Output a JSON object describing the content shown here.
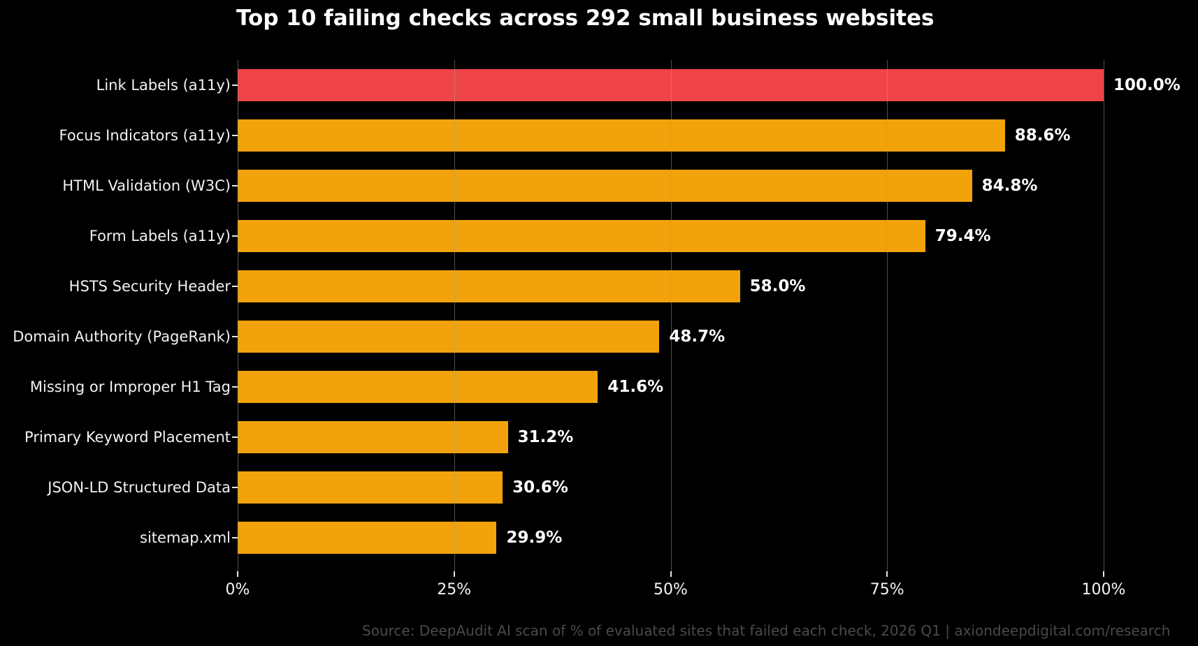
{
  "title": "Top 10 failing checks across 292 small business websites",
  "source_note": "Source: DeepAudit AI scan of % of evaluated sites that failed each check, 2026 Q1 | axiondeepdigital.com/research",
  "colors": {
    "background": "#000000",
    "bar_default": "#f2a20a",
    "bar_highlight": "#ee4448",
    "grid": "rgba(160,160,160,0.5)",
    "tick_mark": "#e6e6e6",
    "category_label": "#f2f2f2",
    "value_label": "#ffffff",
    "axis_tick_label": "#f5f5f5",
    "source_text": "#4a4a4a"
  },
  "chart_data": {
    "type": "bar",
    "orientation": "horizontal",
    "title": "Top 10 failing checks across 292 small business websites",
    "categories": [
      "Link Labels (a11y)",
      "Focus Indicators (a11y)",
      "HTML Validation (W3C)",
      "Form Labels (a11y)",
      "HSTS Security Header",
      "Domain Authority (PageRank)",
      "Missing or Improper H1 Tag",
      "Primary Keyword Placement",
      "JSON-LD Structured Data",
      "sitemap.xml"
    ],
    "values": [
      100.0,
      88.6,
      84.8,
      79.4,
      58.0,
      48.7,
      41.6,
      31.2,
      30.6,
      29.9
    ],
    "value_labels": [
      "100.0%",
      "88.6%",
      "84.8%",
      "79.4%",
      "58.0%",
      "48.7%",
      "41.6%",
      "31.2%",
      "30.6%",
      "29.9%"
    ],
    "highlight_index": 0,
    "xlabel": "",
    "ylabel": "",
    "xlim": [
      0,
      100
    ],
    "x_tick_values": [
      0,
      25,
      50,
      75,
      100
    ],
    "x_tick_labels": [
      "0%",
      "25%",
      "50%",
      "75%",
      "100%"
    ],
    "grid": "vertical",
    "legend": "none"
  }
}
